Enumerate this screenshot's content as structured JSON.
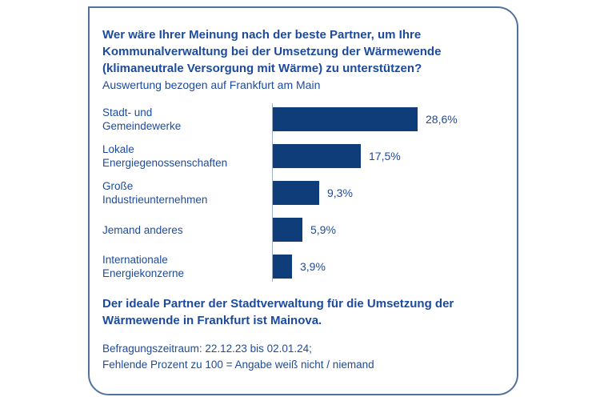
{
  "colors": {
    "bar": "#0e3d79",
    "text_blue": "#1c4b9e",
    "card_border": "#54719e",
    "axis_line": "#9db1cb",
    "background": "#ffffff"
  },
  "card": {
    "title": "Wer wäre Ihrer Meinung nach der beste Partner, um Ihre\nKommunalverwaltung bei der Umsetzung der Wärmewende\n(klimaneutrale Versorgung mit Wärme) zu unterstützen?",
    "subtitle": "Auswertung bezogen auf Frankfurt am Main",
    "conclusion": "Der ideale Partner der Stadtverwaltung für die Umsetzung der\nWärmewende in Frankfurt ist Mainova.",
    "footnote_line1": "Befragungszeitraum: 22.12.23 bis 02.01.24;",
    "footnote_line2": "Fehlende Prozent zu 100 = Angabe weiß nicht / niemand"
  },
  "chart_data": {
    "type": "bar",
    "orientation": "horizontal",
    "title": "Wer wäre Ihrer Meinung nach der beste Partner, um Ihre Kommunalverwaltung bei der Umsetzung der Wärmewende (klimaneutrale Versorgung mit Wärme) zu unterstützen?",
    "subtitle": "Auswertung bezogen auf Frankfurt am Main",
    "categories": [
      "Stadt- und\nGemeindewerke",
      "Lokale\nEnergiegenossenschaften",
      "Große\nIndustrieunternehmen",
      "Jemand anderes",
      "Internationale\nEnergiekonzerne"
    ],
    "values": [
      28.6,
      17.5,
      9.3,
      5.9,
      3.9
    ],
    "value_labels": [
      "28,6%",
      "17,5%",
      "9,3%",
      "5,9%",
      "3,9%"
    ],
    "unit": "%",
    "xlim": [
      0,
      30
    ],
    "grid": false,
    "legend": false,
    "bar_color": "#0e3d79"
  }
}
